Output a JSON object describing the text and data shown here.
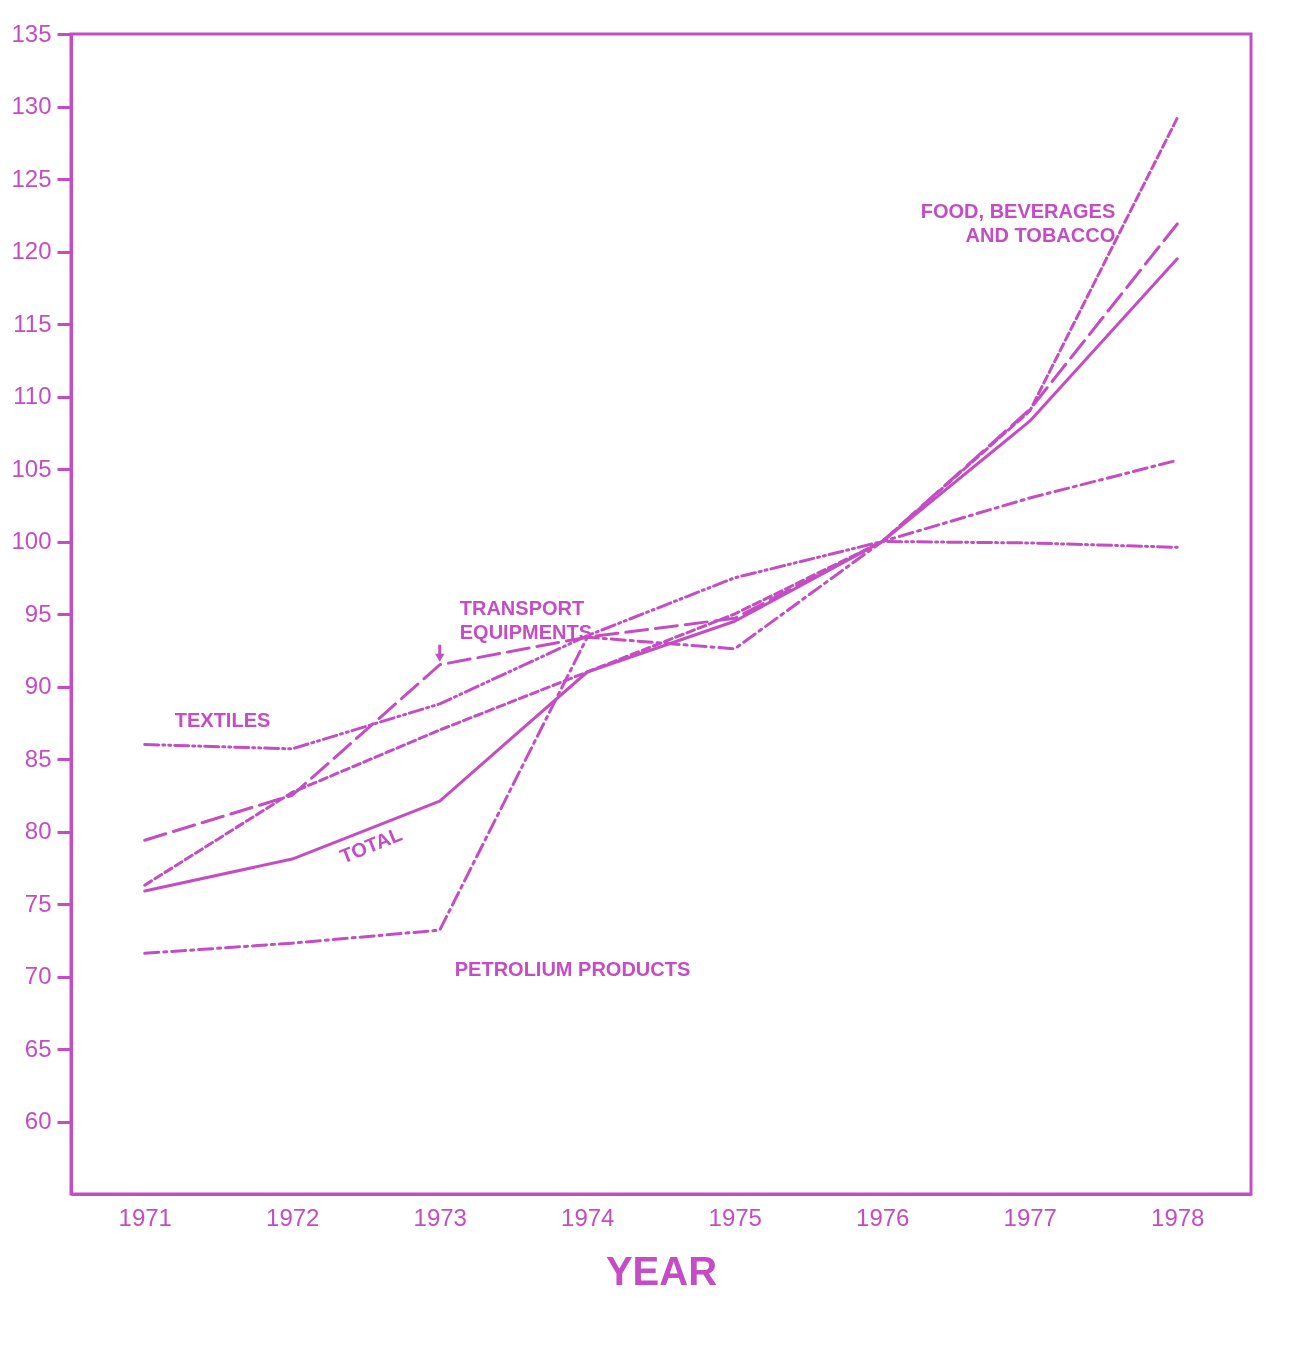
{
  "chart_data": {
    "type": "line",
    "xlabel": "YEAR",
    "categories": [
      "1971",
      "1972",
      "1973",
      "1974",
      "1975",
      "1976",
      "1977",
      "1978"
    ],
    "ylim": [
      55,
      135
    ],
    "yticks": [
      60,
      65,
      70,
      75,
      80,
      85,
      90,
      95,
      100,
      105,
      110,
      115,
      120,
      125,
      130,
      135
    ],
    "grid": false,
    "series": [
      {
        "name": "TOTAL",
        "color": "#c44dc4",
        "line_style": "solid",
        "values": [
          75.9,
          78.1,
          82.1,
          91.0,
          94.5,
          100,
          108.3,
          119.5
        ]
      },
      {
        "name": "PETROLIUM PRODUCTS",
        "color": "#c44dc4",
        "line_style": "dashed",
        "values": [
          71.6,
          72.3,
          73.2,
          93.4,
          92.6,
          100,
          103,
          105.6
        ]
      },
      {
        "name": "TRANSPORT EQUIPMENTS",
        "color": "#c44dc4",
        "line_style": "dashed",
        "values": [
          79.4,
          82.5,
          91.5,
          93.4,
          94.7,
          100,
          109.1,
          121.9
        ]
      },
      {
        "name": "FOOD, BEVERAGES AND TOBACCO",
        "color": "#c44dc4",
        "line_style": "dotted",
        "values": [
          76.3,
          82.7,
          87.0,
          91.0,
          95.0,
          100,
          109.0,
          129.2
        ]
      },
      {
        "name": "TEXTILES",
        "color": "#c44dc4",
        "line_style": "dotted",
        "values": [
          86.0,
          85.7,
          88.8,
          93.5,
          97.5,
          100,
          99.9,
          99.6
        ]
      }
    ]
  }
}
